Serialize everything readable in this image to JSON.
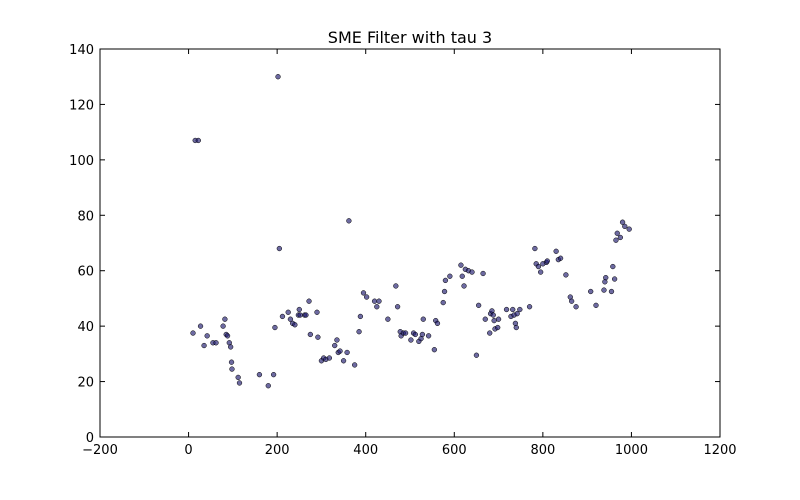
{
  "chart_data": {
    "type": "scatter",
    "title": "SME Filter with tau 3",
    "xlabel": "",
    "ylabel": "",
    "xlim": [
      -200,
      1200
    ],
    "ylim": [
      0,
      140
    ],
    "xticks": [
      -200,
      0,
      200,
      400,
      600,
      800,
      1000,
      1200
    ],
    "yticks": [
      0,
      20,
      40,
      60,
      80,
      100,
      120,
      140
    ],
    "grid": false,
    "marker_color": "#1f1a6e",
    "marker_opacity": 0.65,
    "series": [
      {
        "points": [
          [
            15,
            107
          ],
          [
            22,
            107
          ],
          [
            202,
            130
          ],
          [
            205,
            68
          ],
          [
            362,
            78
          ],
          [
            10,
            37.5
          ],
          [
            27,
            40
          ],
          [
            35,
            33
          ],
          [
            42,
            36.5
          ],
          [
            55,
            34
          ],
          [
            62,
            34
          ],
          [
            78,
            40
          ],
          [
            82,
            42.5
          ],
          [
            85,
            37
          ],
          [
            88,
            36.5
          ],
          [
            92,
            34
          ],
          [
            95,
            32.5
          ],
          [
            97,
            27
          ],
          [
            98,
            24.5
          ],
          [
            112,
            21.5
          ],
          [
            115,
            19.5
          ],
          [
            160,
            22.5
          ],
          [
            180,
            18.5
          ],
          [
            192,
            22.5
          ],
          [
            195,
            39.5
          ],
          [
            212,
            43.5
          ],
          [
            225,
            45
          ],
          [
            230,
            42.5
          ],
          [
            235,
            41
          ],
          [
            240,
            40.5
          ],
          [
            248,
            44
          ],
          [
            250,
            46
          ],
          [
            252,
            44
          ],
          [
            262,
            44
          ],
          [
            265,
            44
          ],
          [
            272,
            49
          ],
          [
            275,
            37
          ],
          [
            290,
            45
          ],
          [
            292,
            36
          ],
          [
            300,
            27.5
          ],
          [
            305,
            28.5
          ],
          [
            310,
            28
          ],
          [
            318,
            28.5
          ],
          [
            330,
            33
          ],
          [
            335,
            35
          ],
          [
            338,
            30.5
          ],
          [
            342,
            31
          ],
          [
            350,
            27.5
          ],
          [
            358,
            30.5
          ],
          [
            375,
            26
          ],
          [
            385,
            38
          ],
          [
            388,
            43.5
          ],
          [
            395,
            52
          ],
          [
            402,
            50.5
          ],
          [
            420,
            49
          ],
          [
            425,
            47
          ],
          [
            430,
            49
          ],
          [
            450,
            42.5
          ],
          [
            468,
            54.5
          ],
          [
            472,
            47
          ],
          [
            478,
            38
          ],
          [
            480,
            36.5
          ],
          [
            485,
            37.5
          ],
          [
            490,
            37.5
          ],
          [
            502,
            35
          ],
          [
            508,
            37.5
          ],
          [
            512,
            37
          ],
          [
            520,
            34.5
          ],
          [
            525,
            35.5
          ],
          [
            528,
            37
          ],
          [
            530,
            42.5
          ],
          [
            542,
            36.5
          ],
          [
            555,
            31.5
          ],
          [
            558,
            42
          ],
          [
            562,
            41
          ],
          [
            575,
            48.5
          ],
          [
            578,
            52.5
          ],
          [
            580,
            56.5
          ],
          [
            590,
            58
          ],
          [
            615,
            62
          ],
          [
            618,
            58
          ],
          [
            622,
            54.5
          ],
          [
            625,
            60.5
          ],
          [
            632,
            60
          ],
          [
            640,
            59.5
          ],
          [
            650,
            29.5
          ],
          [
            655,
            47.5
          ],
          [
            665,
            59
          ],
          [
            670,
            42.5
          ],
          [
            680,
            37.5
          ],
          [
            682,
            44.5
          ],
          [
            685,
            45.5
          ],
          [
            688,
            44
          ],
          [
            690,
            42
          ],
          [
            692,
            39
          ],
          [
            698,
            39.5
          ],
          [
            700,
            42.5
          ],
          [
            718,
            46
          ],
          [
            728,
            43.5
          ],
          [
            732,
            46
          ],
          [
            735,
            44
          ],
          [
            738,
            41
          ],
          [
            740,
            39.5
          ],
          [
            742,
            44.5
          ],
          [
            748,
            46
          ],
          [
            770,
            47
          ],
          [
            782,
            68
          ],
          [
            785,
            62.5
          ],
          [
            790,
            61.5
          ],
          [
            795,
            59.5
          ],
          [
            800,
            62.5
          ],
          [
            808,
            63
          ],
          [
            810,
            63.5
          ],
          [
            830,
            67
          ],
          [
            835,
            64
          ],
          [
            840,
            64.5
          ],
          [
            852,
            58.5
          ],
          [
            862,
            50.5
          ],
          [
            865,
            49
          ],
          [
            875,
            47
          ],
          [
            908,
            52.5
          ],
          [
            920,
            47.5
          ],
          [
            938,
            53
          ],
          [
            940,
            56
          ],
          [
            942,
            57.5
          ],
          [
            955,
            52.5
          ],
          [
            958,
            61.5
          ],
          [
            962,
            57
          ],
          [
            965,
            71
          ],
          [
            968,
            73.5
          ],
          [
            975,
            72
          ],
          [
            980,
            77.5
          ],
          [
            985,
            76
          ],
          [
            995,
            75
          ]
        ]
      }
    ]
  }
}
